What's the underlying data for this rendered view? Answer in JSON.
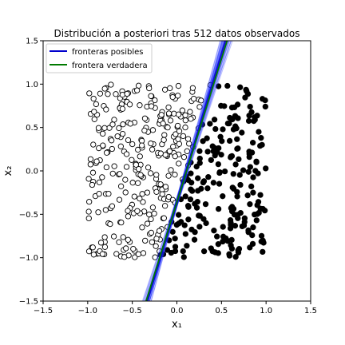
{
  "chart_data": {
    "type": "scatter",
    "title": "Distribución a posteriori tras 512 datos observados",
    "xlabel": "x₁",
    "ylabel": "x₂",
    "xlim": [
      -1.5,
      1.5
    ],
    "ylim": [
      -1.5,
      1.5
    ],
    "x_ticks": [
      "−1.5",
      "−1.0",
      "−0.5",
      "0.0",
      "0.5",
      "1.0",
      "1.5"
    ],
    "y_ticks": [
      "−1.5",
      "−1.0",
      "−0.5",
      "0.0",
      "0.5",
      "1.0",
      "1.5"
    ],
    "grid": false,
    "legend": {
      "placement": "top-left",
      "entries": [
        {
          "label": "fronteras posibles",
          "color": "#0000cc"
        },
        {
          "label": "frontera verdadera",
          "color": "#007a00"
        }
      ]
    },
    "n_points": 512,
    "point_range": {
      "x": [
        -1,
        1
      ],
      "y": [
        -1,
        1
      ]
    },
    "true_boundary": {
      "slope": 3.3,
      "intercept": -0.36
    },
    "possible_boundaries": {
      "count": 60,
      "slope_range": [
        3.0,
        3.8
      ],
      "intercept_range": [
        -0.42,
        -0.3
      ]
    },
    "classes": {
      "open": "left of boundary (hollow circles)",
      "filled": "right of boundary (black dots)"
    },
    "colors": {
      "boundary_sample": "#2233ff",
      "boundary_mean": "#0000cc",
      "true_boundary": "#007a00",
      "points": "#000000"
    }
  }
}
